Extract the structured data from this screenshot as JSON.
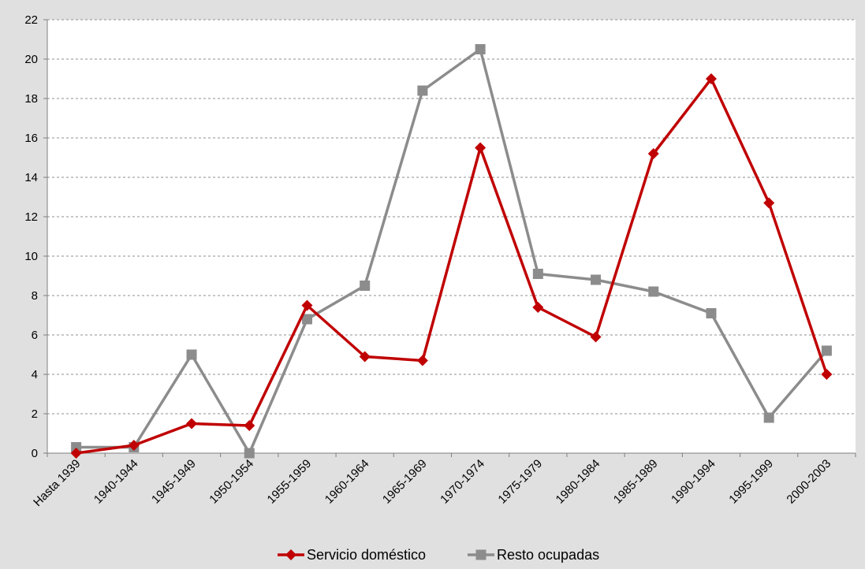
{
  "chart_data": {
    "type": "line",
    "categories": [
      "Hasta 1939",
      "1940-1944",
      "1945-1949",
      "1950-1954",
      "1955-1959",
      "1960-1964",
      "1965-1969",
      "1970-1974",
      "1975-1979",
      "1980-1984",
      "1985-1989",
      "1990-1994",
      "1995-1999",
      "2000-2003"
    ],
    "series": [
      {
        "name": "Servicio doméstico",
        "color": "#c00000",
        "marker": "diamond",
        "values": [
          0.0,
          0.4,
          1.5,
          1.4,
          7.5,
          4.9,
          4.7,
          15.5,
          7.4,
          5.9,
          15.2,
          19.0,
          12.7,
          4.0
        ]
      },
      {
        "name": "Resto ocupadas",
        "color": "#8c8c8c",
        "marker": "square",
        "values": [
          0.3,
          0.3,
          5.0,
          0.0,
          6.8,
          8.5,
          18.4,
          20.5,
          9.1,
          8.8,
          8.2,
          7.1,
          1.8,
          5.2
        ]
      }
    ],
    "yticks": [
      "0",
      "2",
      "4",
      "6",
      "8",
      "10",
      "12",
      "14",
      "16",
      "18",
      "20",
      "22"
    ],
    "ylim": [
      0,
      22
    ],
    "grid": true,
    "legend": "bottom"
  }
}
